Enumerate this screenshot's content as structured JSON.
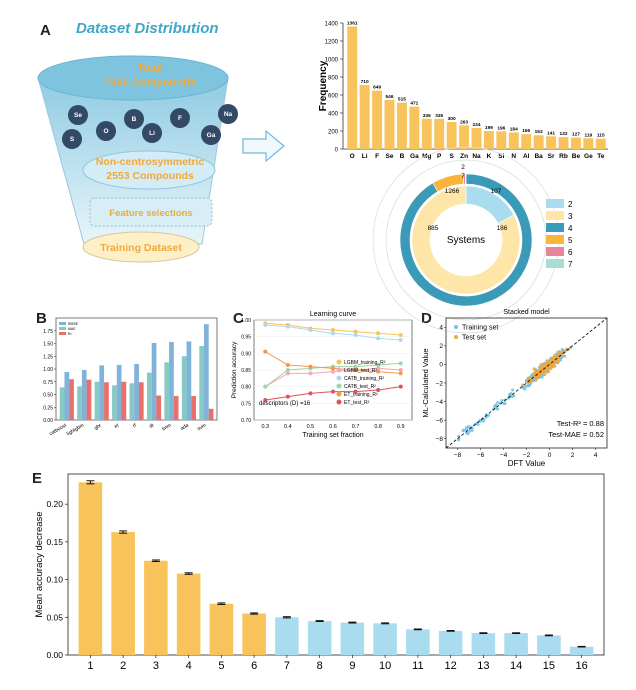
{
  "panels": {
    "a": {
      "letter": "A",
      "title": "Dataset Distribution"
    },
    "b": {
      "letter": "B"
    },
    "c": {
      "letter": "C"
    },
    "d": {
      "letter": "D"
    },
    "e": {
      "letter": "E"
    }
  },
  "funnel": {
    "total_line1": "Total",
    "total_line2": "7082 Compounds",
    "elements": [
      "Se",
      "B",
      "F",
      "Na",
      "S",
      "O",
      "Li",
      "Ga"
    ],
    "ncs_line1": "Non-centrosymmetric",
    "ncs_line2": "2553 Compounds",
    "feature": "Feature selections",
    "training": "Training Dataset"
  },
  "colors": {
    "orange": "#f9c35c",
    "blue": "#a9dcef",
    "teal": "#3b9ab7",
    "bar_b_blue": "#7fb3da",
    "bar_b_teal": "#86c9c5",
    "bar_b_red": "#e8706a",
    "funnel_blue": "#8fcbe3",
    "funnel_light": "#cfe8f3",
    "ball": "#334a66"
  },
  "chart_data": [
    {
      "id": "frequency",
      "type": "bar",
      "categories": [
        "O",
        "Li",
        "F",
        "Se",
        "B",
        "Ga",
        "Mg",
        "P",
        "S",
        "Zn",
        "Na",
        "K",
        "Si",
        "N",
        "Al",
        "Ba",
        "Sr",
        "Rb",
        "Be",
        "Ge",
        "Te"
      ],
      "values": [
        1361,
        710,
        649,
        546,
        515,
        471,
        336,
        335,
        300,
        263,
        234,
        199,
        196,
        184,
        165,
        153,
        141,
        132,
        127,
        119,
        115
      ],
      "xlabel": "",
      "ylabel": "Frequency",
      "ylim": [
        0,
        1400
      ],
      "yticks": [
        0,
        200,
        400,
        600,
        800,
        1000,
        1200,
        1400
      ]
    },
    {
      "id": "systems",
      "type": "pie",
      "center_label": "Systems",
      "legend": [
        "2",
        "3",
        "4",
        "5",
        "6",
        "7"
      ],
      "legend_colors": [
        "#a9dcef",
        "#fde6a8",
        "#3b9ab7",
        "#f9b43c",
        "#e8849a",
        "#a9dcd2"
      ],
      "inner_values": [
        186,
        885
      ],
      "outer_values": [
        1266,
        107,
        7,
        2
      ],
      "labels_shown": [
        "2",
        "7",
        "1266",
        "107",
        "885",
        "186"
      ]
    },
    {
      "id": "model-comparison",
      "type": "bar",
      "categories": [
        "catboost",
        "lightgbm",
        "gbr",
        "et",
        "rf",
        "dt",
        "lmm",
        "ada",
        "svm"
      ],
      "legend": [
        "RMSE",
        "MAE",
        "R²"
      ],
      "series": [
        {
          "name": "RMSE",
          "values": [
            0.94,
            0.98,
            1.07,
            1.08,
            1.1,
            1.51,
            1.53,
            1.54,
            1.88
          ]
        },
        {
          "name": "MAE",
          "values": [
            0.64,
            0.66,
            0.75,
            0.68,
            0.72,
            0.93,
            1.13,
            1.25,
            1.45
          ]
        },
        {
          "name": "R²",
          "values": [
            0.8,
            0.79,
            0.74,
            0.75,
            0.74,
            0.48,
            0.47,
            0.47,
            0.22
          ]
        }
      ],
      "ylim": [
        0,
        2.0
      ],
      "yticks": [
        "0.00",
        "0.25",
        "0.50",
        "0.75",
        "1.00",
        "1.25",
        "1.50",
        "1.75"
      ]
    },
    {
      "id": "learning-curve",
      "type": "line",
      "title": "Learning curve",
      "xlabel": "Training set fraction",
      "ylabel": "Prediction accuracy",
      "annotation": "descriptors (D) =16",
      "x": [
        0.3,
        0.4,
        0.5,
        0.6,
        0.7,
        0.8,
        0.9
      ],
      "xticks": [
        "0.3",
        "0.4",
        "0.5",
        "0.6",
        "0.7",
        "0.8",
        "0.9"
      ],
      "ylim": [
        0.7,
        1.0
      ],
      "yticks": [
        "0.70",
        "0.75",
        "0.80",
        "0.85",
        "0.90",
        "0.95",
        "1.00"
      ],
      "series": [
        {
          "name": "LGBM_training_R²",
          "color": "#f9c35c",
          "values": [
            0.99,
            0.985,
            0.975,
            0.97,
            0.965,
            0.96,
            0.955
          ]
        },
        {
          "name": "LGBM_test_R²",
          "color": "#f2a9b8",
          "values": [
            0.8,
            0.84,
            0.84,
            0.845,
            0.85,
            0.855,
            0.85
          ]
        },
        {
          "name": "CATB_training_R²",
          "color": "#a9dcef",
          "values": [
            0.985,
            0.98,
            0.97,
            0.96,
            0.955,
            0.945,
            0.94
          ]
        },
        {
          "name": "CATB_test_R²",
          "color": "#9ed6a6",
          "values": [
            0.8,
            0.85,
            0.855,
            0.86,
            0.86,
            0.865,
            0.87
          ]
        },
        {
          "name": "ET_training_R²",
          "color": "#f29a4a",
          "values": [
            0.905,
            0.865,
            0.86,
            0.855,
            0.85,
            0.845,
            0.84
          ]
        },
        {
          "name": "ET_test_R²",
          "color": "#e0515a",
          "values": [
            0.76,
            0.77,
            0.78,
            0.785,
            0.785,
            0.79,
            0.8
          ]
        }
      ]
    },
    {
      "id": "stacked-model",
      "type": "scatter",
      "title": "Stacked model",
      "xlabel": "DFT Value",
      "ylabel": "ML-Calculated Value",
      "legend": [
        "Training set",
        "Test set"
      ],
      "xlim": [
        -9,
        5
      ],
      "ylim": [
        -9,
        5
      ],
      "xticks": [
        "-8",
        "-6",
        "-4",
        "-2",
        "0",
        "2",
        "4"
      ],
      "yticks": [
        "-8",
        "-6",
        "-4",
        "-2",
        "0",
        "2",
        "4"
      ],
      "annotation1": "Test-R² = 0.88",
      "annotation2": "Test-MAE = 0.52"
    },
    {
      "id": "feature-importance",
      "type": "bar",
      "categories": [
        "1",
        "2",
        "3",
        "4",
        "5",
        "6",
        "7",
        "8",
        "9",
        "10",
        "11",
        "12",
        "13",
        "14",
        "15",
        "16"
      ],
      "values": [
        0.229,
        0.163,
        0.125,
        0.108,
        0.068,
        0.055,
        0.05,
        0.045,
        0.043,
        0.042,
        0.034,
        0.032,
        0.029,
        0.029,
        0.026,
        0.011
      ],
      "errors": [
        0.002,
        0.0015,
        0.001,
        0.001,
        0.001,
        0.0008,
        0.0008,
        0.0006,
        0.0006,
        0.0006,
        0.0005,
        0.0005,
        0.0005,
        0.0005,
        0.0005,
        0.0004
      ],
      "ylabel": "Mean accuracy decrease",
      "ylim": [
        0,
        0.24
      ],
      "yticks": [
        "0.00",
        "0.05",
        "0.10",
        "0.15",
        "0.20"
      ]
    }
  ]
}
